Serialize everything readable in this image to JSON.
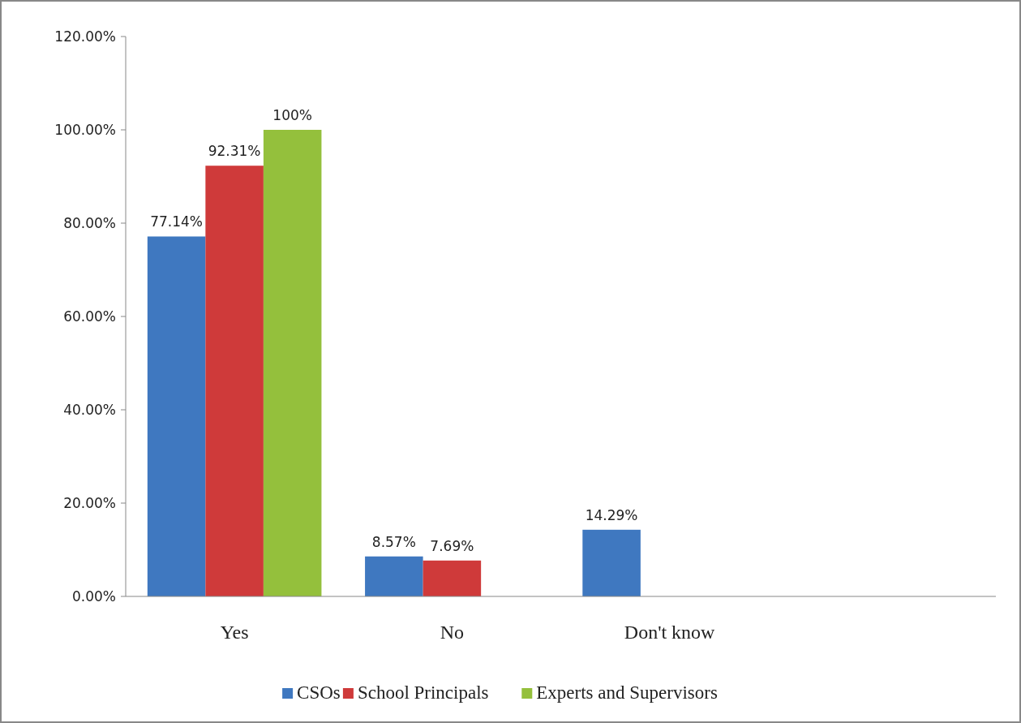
{
  "chart_data": {
    "type": "bar",
    "categories": [
      "Yes",
      "No",
      "Don't know",
      null
    ],
    "series": [
      {
        "name": "CSOs",
        "color": "#3f78c0",
        "values": [
          77.14,
          8.57,
          14.29,
          null
        ],
        "value_labels": [
          "77.14%",
          "8.57%",
          "14.29%",
          null
        ]
      },
      {
        "name": "School Principals",
        "color": "#cf3a3a",
        "values": [
          92.31,
          7.69,
          null,
          null
        ],
        "value_labels": [
          "92.31%",
          "7.69%",
          null,
          null
        ]
      },
      {
        "name": "Experts and Supervisors",
        "color": "#94c03c",
        "values": [
          100,
          null,
          null,
          null
        ],
        "value_labels": [
          "100%",
          null,
          null,
          null
        ]
      }
    ],
    "ylim": [
      0,
      120
    ],
    "yticks": [
      {
        "value": 0,
        "label": "0.00%"
      },
      {
        "value": 20,
        "label": "20.00%"
      },
      {
        "value": 40,
        "label": "40.00%"
      },
      {
        "value": 60,
        "label": "60.00%"
      },
      {
        "value": 80,
        "label": "80.00%"
      },
      {
        "value": 100,
        "label": "100.00%"
      },
      {
        "value": 120,
        "label": "120.00%"
      }
    ],
    "grid": false,
    "legend": "bottom"
  }
}
